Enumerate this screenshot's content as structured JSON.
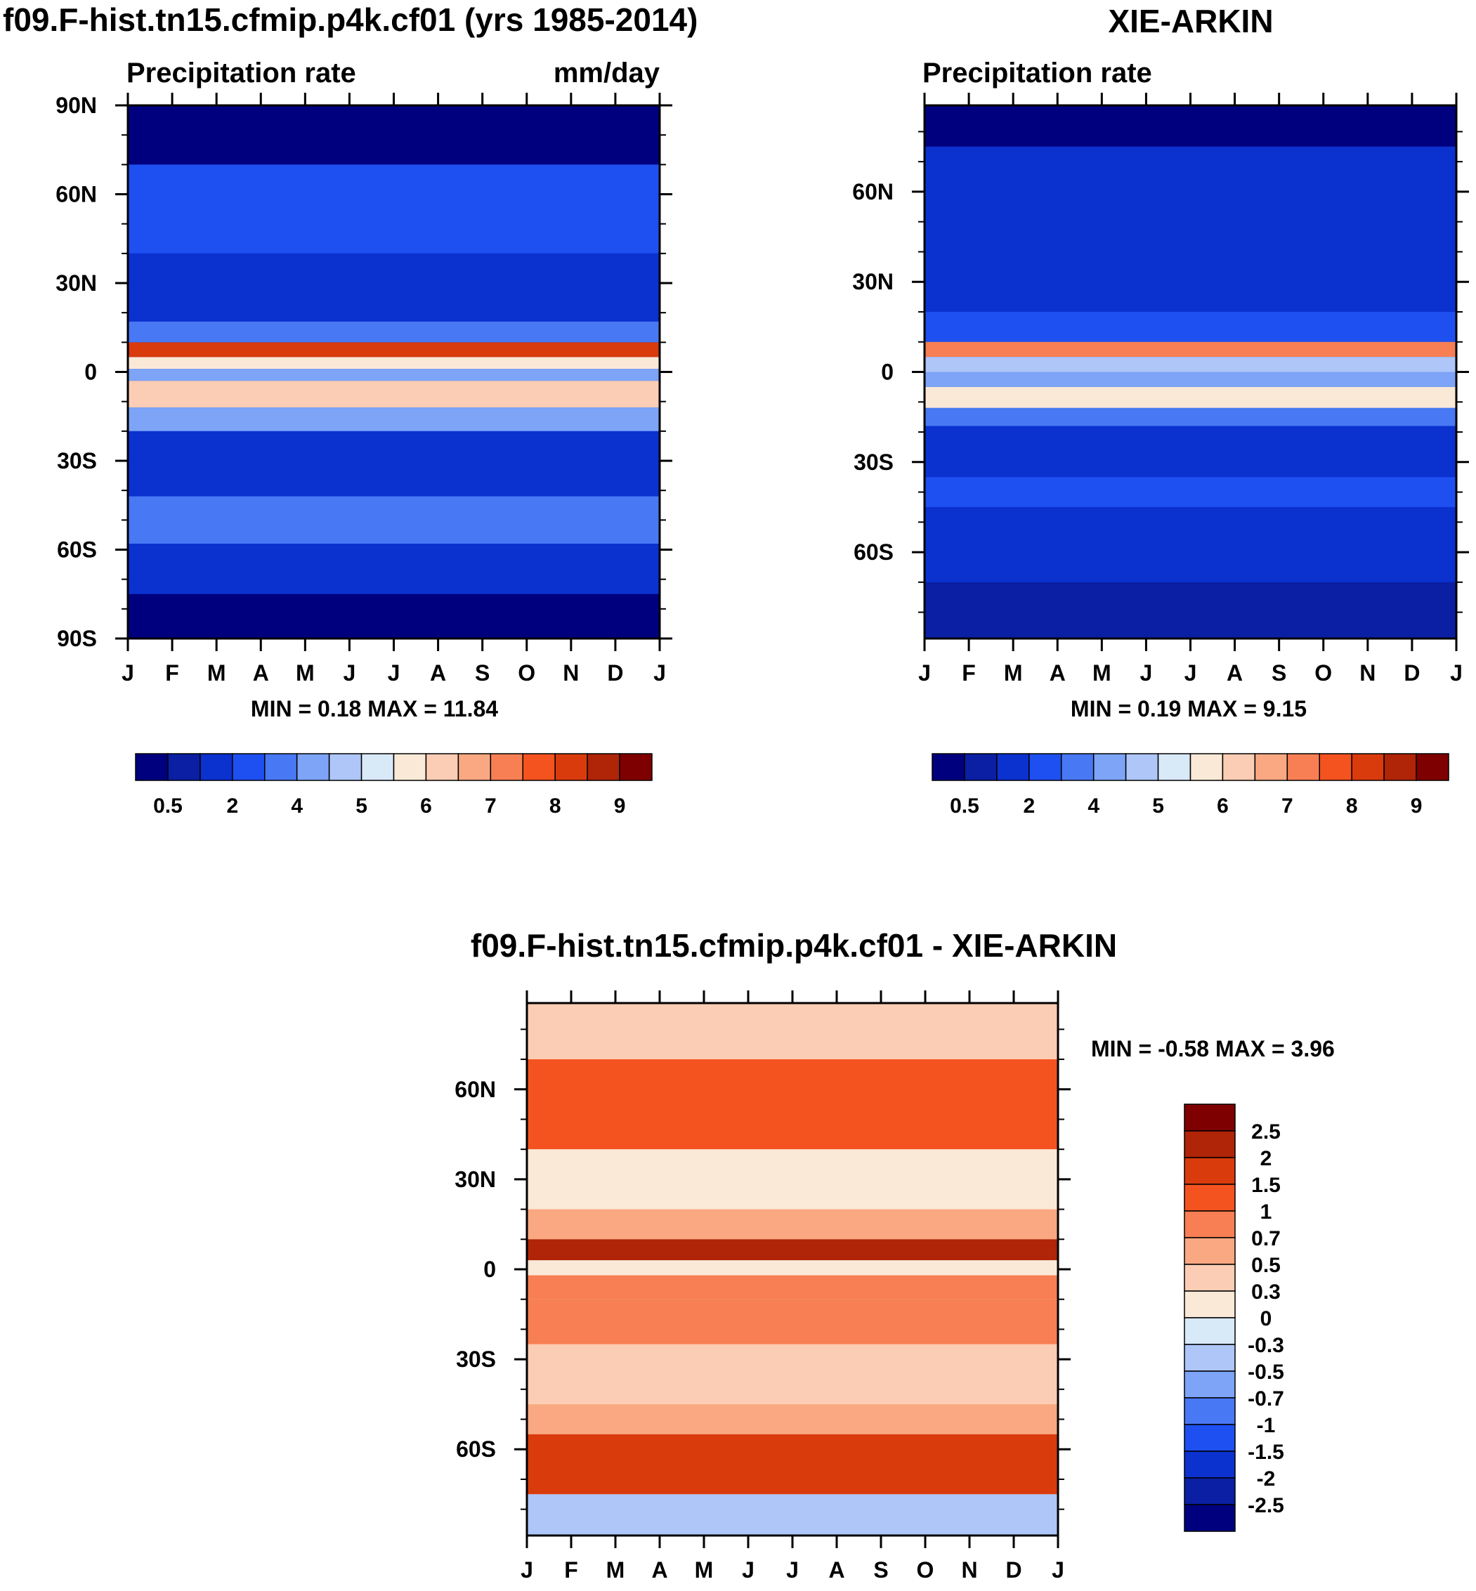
{
  "chart_data": [
    {
      "type": "heatmap",
      "id": "model",
      "title": "f09.F-hist.tn15.cfmip.p4k.cf01 (yrs 1985-2014)",
      "left_label": "Precipitation rate",
      "right_label": "mm/day",
      "xlabels": [
        "J",
        "F",
        "M",
        "A",
        "M",
        "J",
        "J",
        "A",
        "S",
        "O",
        "N",
        "D",
        "J"
      ],
      "ylabels": [
        "90N",
        "60N",
        "30N",
        "0",
        "30S",
        "60S",
        "90S"
      ],
      "ylim": [
        -90,
        90
      ],
      "stats": "MIN =   0.18 MAX =  11.84",
      "colorbar_labels": [
        "0.5",
        "2",
        "4",
        "5",
        "6",
        "7",
        "8",
        "9"
      ],
      "bands": [
        {
          "lat_n": 90,
          "lat_s": 70,
          "level": 0
        },
        {
          "lat_n": 70,
          "lat_s": 40,
          "level": 3
        },
        {
          "lat_n": 40,
          "lat_s": 17,
          "level": 2
        },
        {
          "lat_n": 17,
          "lat_s": 10,
          "level": 4
        },
        {
          "lat_n": 10,
          "lat_s": 5,
          "level": 13
        },
        {
          "lat_n": 5,
          "lat_s": 1,
          "level": 8
        },
        {
          "lat_n": 1,
          "lat_s": -3,
          "level": 5
        },
        {
          "lat_n": -3,
          "lat_s": -12,
          "level": 9
        },
        {
          "lat_n": -12,
          "lat_s": -20,
          "level": 5
        },
        {
          "lat_n": -20,
          "lat_s": -42,
          "level": 2
        },
        {
          "lat_n": -42,
          "lat_s": -58,
          "level": 4
        },
        {
          "lat_n": -58,
          "lat_s": -75,
          "level": 2
        },
        {
          "lat_n": -75,
          "lat_s": -90,
          "level": 0
        }
      ]
    },
    {
      "type": "heatmap",
      "id": "obs",
      "title": "XIE-ARKIN",
      "left_label": "Precipitation rate",
      "xlabels": [
        "J",
        "F",
        "M",
        "A",
        "M",
        "J",
        "J",
        "A",
        "S",
        "O",
        "N",
        "D",
        "J"
      ],
      "ylabels": [
        "60N",
        "30N",
        "0",
        "30S",
        "60S"
      ],
      "ylim": [
        -88.75,
        88.75
      ],
      "stats": "MIN =   0.19 MAX =   9.15",
      "colorbar_labels": [
        "0.5",
        "2",
        "4",
        "5",
        "6",
        "7",
        "8",
        "9"
      ],
      "bands": [
        {
          "lat_n": 90,
          "lat_s": 75,
          "level": 0
        },
        {
          "lat_n": 75,
          "lat_s": 45,
          "level": 2
        },
        {
          "lat_n": 45,
          "lat_s": 20,
          "level": 2
        },
        {
          "lat_n": 20,
          "lat_s": 10,
          "level": 3
        },
        {
          "lat_n": 10,
          "lat_s": 5,
          "level": 11
        },
        {
          "lat_n": 5,
          "lat_s": 0,
          "level": 6
        },
        {
          "lat_n": 0,
          "lat_s": -5,
          "level": 5
        },
        {
          "lat_n": -5,
          "lat_s": -12,
          "level": 8
        },
        {
          "lat_n": -12,
          "lat_s": -18,
          "level": 4
        },
        {
          "lat_n": -18,
          "lat_s": -35,
          "level": 2
        },
        {
          "lat_n": -35,
          "lat_s": -45,
          "level": 3
        },
        {
          "lat_n": -45,
          "lat_s": -70,
          "level": 2
        },
        {
          "lat_n": -70,
          "lat_s": -90,
          "level": 1
        }
      ]
    },
    {
      "type": "heatmap",
      "id": "diff",
      "title": "f09.F-hist.tn15.cfmip.p4k.cf01 - XIE-ARKIN",
      "xlabels": [
        "J",
        "F",
        "M",
        "A",
        "M",
        "J",
        "J",
        "A",
        "S",
        "O",
        "N",
        "D",
        "J"
      ],
      "ylabels": [
        "60N",
        "30N",
        "0",
        "30S",
        "60S"
      ],
      "ylim": [
        -88.75,
        88.75
      ],
      "stats": "MIN =  -0.58 MAX =    3.96",
      "colorbar_labels": [
        "2.5",
        "2",
        "1.5",
        "1",
        "0.7",
        "0.5",
        "0.3",
        "0",
        "-0.3",
        "-0.5",
        "-0.7",
        "-1",
        "-1.5",
        "-2",
        "-2.5"
      ],
      "bands": [
        {
          "lat_n": 90,
          "lat_s": 70,
          "level": 9
        },
        {
          "lat_n": 70,
          "lat_s": 40,
          "level": 12
        },
        {
          "lat_n": 40,
          "lat_s": 20,
          "level": 8
        },
        {
          "lat_n": 20,
          "lat_s": 10,
          "level": 10
        },
        {
          "lat_n": 10,
          "lat_s": 3,
          "level": 14
        },
        {
          "lat_n": 3,
          "lat_s": -2,
          "level": 8
        },
        {
          "lat_n": -2,
          "lat_s": -10,
          "level": 11
        },
        {
          "lat_n": -10,
          "lat_s": -25,
          "level": 11
        },
        {
          "lat_n": -25,
          "lat_s": -45,
          "level": 9
        },
        {
          "lat_n": -45,
          "lat_s": -55,
          "level": 10
        },
        {
          "lat_n": -55,
          "lat_s": -75,
          "level": 13
        },
        {
          "lat_n": -75,
          "lat_s": -90,
          "level": 6
        }
      ]
    }
  ],
  "colors": {
    "precip": [
      "#00007f",
      "#0a1fa3",
      "#0b31cf",
      "#1e4ff0",
      "#4878f4",
      "#7da4f7",
      "#aec6f8",
      "#d8e9f8",
      "#fbe9d7",
      "#fbcdb4",
      "#f9a882",
      "#f77f53",
      "#f4531f",
      "#d93b0d",
      "#b02407",
      "#7f0000"
    ],
    "diff": [
      "#00007f",
      "#0a1fa3",
      "#0b31cf",
      "#1e4ff0",
      "#4878f4",
      "#7da4f7",
      "#aec6f8",
      "#d8e9f8",
      "#fbe9d7",
      "#fbcdb4",
      "#f9a882",
      "#f77f53",
      "#f4531f",
      "#d93b0d",
      "#b02407",
      "#7f0000"
    ]
  }
}
